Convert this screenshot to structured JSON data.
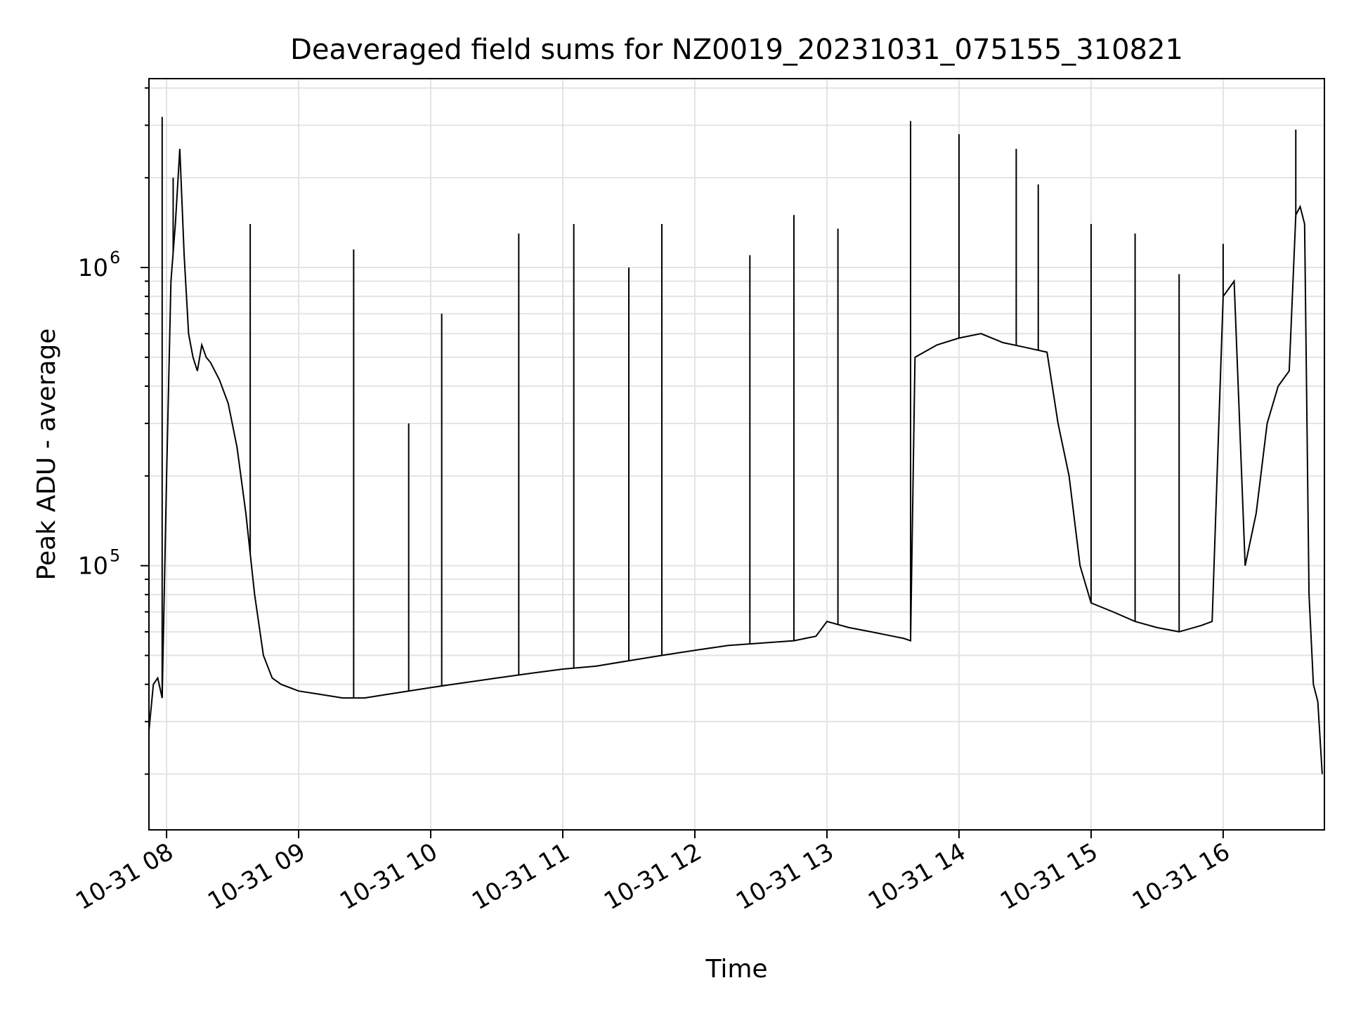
{
  "chart_data": {
    "type": "line",
    "title": "Deaveraged field sums for NZ0019_20231031_075155_310821",
    "xlabel": "Time",
    "ylabel": "Peak ADU - average",
    "xscale": "time",
    "yscale": "log",
    "grid": true,
    "xlim": [
      "2023-10-31 07:52",
      "2023-10-31 16:46"
    ],
    "ylim": [
      13000,
      4300000
    ],
    "xticks": [
      {
        "value": "2023-10-31 08:00",
        "label": "10-31 08"
      },
      {
        "value": "2023-10-31 09:00",
        "label": "10-31 09"
      },
      {
        "value": "2023-10-31 10:00",
        "label": "10-31 10"
      },
      {
        "value": "2023-10-31 11:00",
        "label": "10-31 11"
      },
      {
        "value": "2023-10-31 12:00",
        "label": "10-31 12"
      },
      {
        "value": "2023-10-31 13:00",
        "label": "10-31 13"
      },
      {
        "value": "2023-10-31 14:00",
        "label": "10-31 14"
      },
      {
        "value": "2023-10-31 15:00",
        "label": "10-31 15"
      },
      {
        "value": "2023-10-31 16:00",
        "label": "10-31 16"
      }
    ],
    "yticks": [
      {
        "value": 100000,
        "base": "10",
        "exp": "5"
      },
      {
        "value": 1000000,
        "base": "10",
        "exp": "6"
      }
    ],
    "series": [
      {
        "color": "#000000",
        "x": [
          "2023-10-31 07:52",
          "2023-10-31 07:54",
          "2023-10-31 07:56",
          "2023-10-31 07:58",
          "2023-10-31 08:00",
          "2023-10-31 08:02",
          "2023-10-31 08:04",
          "2023-10-31 08:06",
          "2023-10-31 08:08",
          "2023-10-31 08:10",
          "2023-10-31 08:12",
          "2023-10-31 08:14",
          "2023-10-31 08:16",
          "2023-10-31 08:18",
          "2023-10-31 08:20",
          "2023-10-31 08:24",
          "2023-10-31 08:28",
          "2023-10-31 08:32",
          "2023-10-31 08:36",
          "2023-10-31 08:40",
          "2023-10-31 08:44",
          "2023-10-31 08:48",
          "2023-10-31 08:52",
          "2023-10-31 08:56",
          "2023-10-31 09:00",
          "2023-10-31 09:10",
          "2023-10-31 09:20",
          "2023-10-31 09:30",
          "2023-10-31 09:40",
          "2023-10-31 09:50",
          "2023-10-31 10:00",
          "2023-10-31 10:10",
          "2023-10-31 10:20",
          "2023-10-31 10:30",
          "2023-10-31 10:40",
          "2023-10-31 10:50",
          "2023-10-31 11:00",
          "2023-10-31 11:15",
          "2023-10-31 11:30",
          "2023-10-31 11:45",
          "2023-10-31 12:00",
          "2023-10-31 12:15",
          "2023-10-31 12:30",
          "2023-10-31 12:45",
          "2023-10-31 12:55",
          "2023-10-31 13:00",
          "2023-10-31 13:10",
          "2023-10-31 13:20",
          "2023-10-31 13:30",
          "2023-10-31 13:35",
          "2023-10-31 13:38",
          "2023-10-31 13:40",
          "2023-10-31 13:50",
          "2023-10-31 14:00",
          "2023-10-31 14:10",
          "2023-10-31 14:20",
          "2023-10-31 14:30",
          "2023-10-31 14:40",
          "2023-10-31 14:45",
          "2023-10-31 14:50",
          "2023-10-31 14:55",
          "2023-10-31 15:00",
          "2023-10-31 15:10",
          "2023-10-31 15:20",
          "2023-10-31 15:30",
          "2023-10-31 15:40",
          "2023-10-31 15:50",
          "2023-10-31 15:55",
          "2023-10-31 16:00",
          "2023-10-31 16:05",
          "2023-10-31 16:10",
          "2023-10-31 16:15",
          "2023-10-31 16:20",
          "2023-10-31 16:25",
          "2023-10-31 16:30",
          "2023-10-31 16:33",
          "2023-10-31 16:35",
          "2023-10-31 16:37",
          "2023-10-31 16:39",
          "2023-10-31 16:41",
          "2023-10-31 16:43",
          "2023-10-31 16:45"
        ],
        "y": [
          28000,
          40000,
          42000,
          36000,
          200000,
          900000,
          1400000,
          2500000,
          1100000,
          600000,
          500000,
          450000,
          550000,
          500000,
          480000,
          420000,
          350000,
          250000,
          150000,
          80000,
          50000,
          42000,
          40000,
          39000,
          38000,
          37000,
          36000,
          36000,
          37000,
          38000,
          39000,
          40000,
          41000,
          42000,
          43000,
          44000,
          45000,
          46000,
          48000,
          50000,
          52000,
          54000,
          55000,
          56000,
          58000,
          65000,
          62000,
          60000,
          58000,
          57000,
          56000,
          500000,
          550000,
          580000,
          600000,
          560000,
          540000,
          520000,
          300000,
          200000,
          100000,
          75000,
          70000,
          65000,
          62000,
          60000,
          63000,
          65000,
          800000,
          900000,
          100000,
          150000,
          300000,
          400000,
          450000,
          1500000,
          1600000,
          1400000,
          80000,
          40000,
          35000,
          20000
        ]
      }
    ],
    "spikes": [
      {
        "x": "2023-10-31 07:58",
        "y": 3200000
      },
      {
        "x": "2023-10-31 08:03",
        "y": 2000000
      },
      {
        "x": "2023-10-31 08:38",
        "y": 1400000
      },
      {
        "x": "2023-10-31 09:25",
        "y": 1150000
      },
      {
        "x": "2023-10-31 09:50",
        "y": 300000
      },
      {
        "x": "2023-10-31 10:05",
        "y": 700000
      },
      {
        "x": "2023-10-31 10:40",
        "y": 1300000
      },
      {
        "x": "2023-10-31 11:05",
        "y": 1400000
      },
      {
        "x": "2023-10-31 11:30",
        "y": 1000000
      },
      {
        "x": "2023-10-31 11:45",
        "y": 1400000
      },
      {
        "x": "2023-10-31 12:25",
        "y": 1100000
      },
      {
        "x": "2023-10-31 12:45",
        "y": 1500000
      },
      {
        "x": "2023-10-31 13:05",
        "y": 1350000
      },
      {
        "x": "2023-10-31 13:38",
        "y": 3100000
      },
      {
        "x": "2023-10-31 14:00",
        "y": 2800000
      },
      {
        "x": "2023-10-31 14:26",
        "y": 2500000
      },
      {
        "x": "2023-10-31 14:36",
        "y": 1900000
      },
      {
        "x": "2023-10-31 15:00",
        "y": 1400000
      },
      {
        "x": "2023-10-31 15:20",
        "y": 1300000
      },
      {
        "x": "2023-10-31 15:40",
        "y": 950000
      },
      {
        "x": "2023-10-31 16:00",
        "y": 1200000
      },
      {
        "x": "2023-10-31 16:33",
        "y": 2900000
      }
    ]
  }
}
